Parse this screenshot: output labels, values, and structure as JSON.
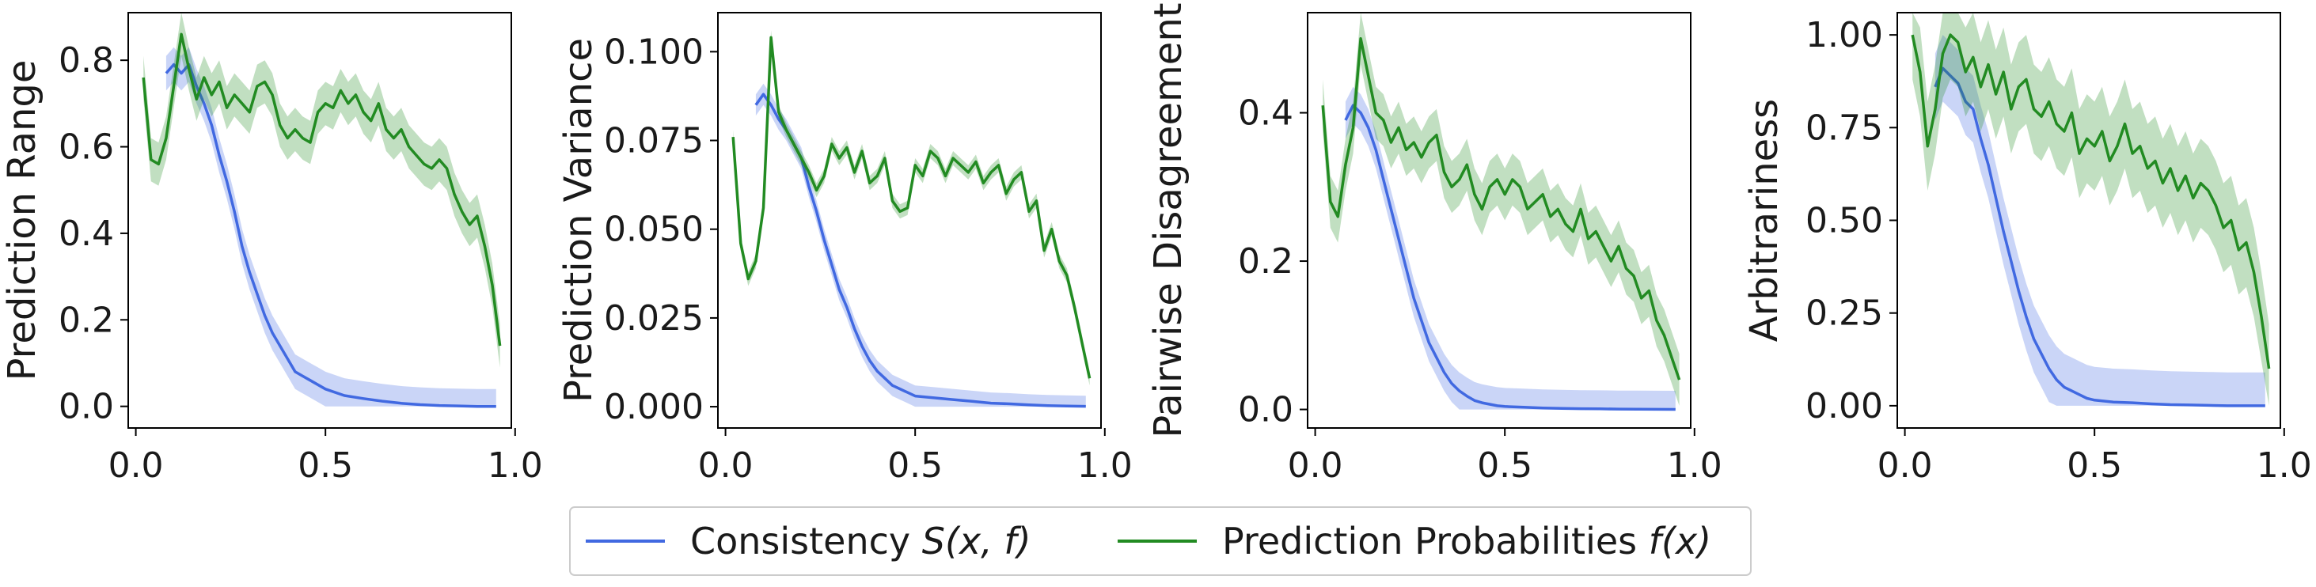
{
  "legend": {
    "placement": "bottom-center",
    "items": [
      {
        "label_pre": "Consistency ",
        "label_math": "S(x, f)",
        "color": "#4169e1"
      },
      {
        "label_pre": "Prediction Probabilities ",
        "label_math": "f(x)",
        "color": "#228b22"
      }
    ]
  },
  "chart_data": [
    {
      "type": "line",
      "ylabel": "Prediction Range",
      "xlim": [
        -0.02,
        0.99
      ],
      "ylim": [
        -0.05,
        0.91
      ],
      "xticks": [
        "0.0",
        "0.5",
        "1.0"
      ],
      "yticks": [
        "0.0",
        "0.2",
        "0.4",
        "0.6",
        "0.8"
      ],
      "series": [
        {
          "name": "Consistency S(x, f)",
          "color": "#4169e1",
          "x": [
            0.08,
            0.1,
            0.12,
            0.14,
            0.16,
            0.18,
            0.2,
            0.22,
            0.24,
            0.26,
            0.28,
            0.3,
            0.32,
            0.34,
            0.36,
            0.38,
            0.4,
            0.42,
            0.44,
            0.46,
            0.48,
            0.5,
            0.55,
            0.6,
            0.65,
            0.7,
            0.75,
            0.8,
            0.85,
            0.9,
            0.95
          ],
          "y": [
            0.77,
            0.79,
            0.77,
            0.79,
            0.74,
            0.7,
            0.65,
            0.58,
            0.52,
            0.45,
            0.37,
            0.31,
            0.26,
            0.21,
            0.17,
            0.14,
            0.11,
            0.08,
            0.07,
            0.06,
            0.05,
            0.04,
            0.025,
            0.018,
            0.012,
            0.007,
            0.004,
            0.002,
            0.001,
            0.0,
            0.0
          ],
          "band": 0.04
        },
        {
          "name": "Prediction Probabilities f(x)",
          "color": "#228b22",
          "x": [
            0.02,
            0.04,
            0.06,
            0.08,
            0.1,
            0.12,
            0.14,
            0.16,
            0.18,
            0.2,
            0.22,
            0.24,
            0.26,
            0.28,
            0.3,
            0.32,
            0.34,
            0.36,
            0.38,
            0.4,
            0.42,
            0.44,
            0.46,
            0.48,
            0.5,
            0.52,
            0.54,
            0.56,
            0.58,
            0.6,
            0.62,
            0.64,
            0.66,
            0.68,
            0.7,
            0.72,
            0.74,
            0.76,
            0.78,
            0.8,
            0.82,
            0.84,
            0.86,
            0.88,
            0.9,
            0.92,
            0.94,
            0.96
          ],
          "y": [
            0.76,
            0.57,
            0.56,
            0.62,
            0.74,
            0.86,
            0.78,
            0.71,
            0.76,
            0.72,
            0.75,
            0.69,
            0.72,
            0.7,
            0.68,
            0.74,
            0.75,
            0.72,
            0.65,
            0.62,
            0.64,
            0.62,
            0.61,
            0.68,
            0.7,
            0.69,
            0.73,
            0.7,
            0.72,
            0.68,
            0.66,
            0.7,
            0.64,
            0.62,
            0.64,
            0.6,
            0.58,
            0.56,
            0.55,
            0.57,
            0.55,
            0.49,
            0.45,
            0.42,
            0.44,
            0.37,
            0.28,
            0.14
          ],
          "band": 0.05
        }
      ]
    },
    {
      "type": "line",
      "ylabel": "Prediction Variance",
      "xlim": [
        -0.02,
        0.99
      ],
      "ylim": [
        -0.006,
        0.111
      ],
      "xticks": [
        "0.0",
        "0.5",
        "1.0"
      ],
      "yticks": [
        "0.000",
        "0.025",
        "0.050",
        "0.075",
        "0.100"
      ],
      "series": [
        {
          "name": "Consistency S(x, f)",
          "color": "#4169e1",
          "x": [
            0.08,
            0.1,
            0.12,
            0.14,
            0.16,
            0.18,
            0.2,
            0.22,
            0.24,
            0.26,
            0.28,
            0.3,
            0.32,
            0.34,
            0.36,
            0.38,
            0.4,
            0.42,
            0.44,
            0.46,
            0.48,
            0.5,
            0.55,
            0.6,
            0.65,
            0.7,
            0.75,
            0.8,
            0.85,
            0.9,
            0.95
          ],
          "y": [
            0.085,
            0.088,
            0.085,
            0.081,
            0.078,
            0.074,
            0.07,
            0.062,
            0.055,
            0.047,
            0.04,
            0.033,
            0.028,
            0.022,
            0.017,
            0.013,
            0.01,
            0.008,
            0.006,
            0.005,
            0.004,
            0.003,
            0.0025,
            0.002,
            0.0015,
            0.001,
            0.0008,
            0.0005,
            0.0003,
            0.0002,
            0.0001
          ],
          "band": 0.003
        },
        {
          "name": "Prediction Probabilities f(x)",
          "color": "#228b22",
          "x": [
            0.02,
            0.04,
            0.06,
            0.08,
            0.1,
            0.12,
            0.14,
            0.16,
            0.18,
            0.2,
            0.22,
            0.24,
            0.26,
            0.28,
            0.3,
            0.32,
            0.34,
            0.36,
            0.38,
            0.4,
            0.42,
            0.44,
            0.46,
            0.48,
            0.5,
            0.52,
            0.54,
            0.56,
            0.58,
            0.6,
            0.62,
            0.64,
            0.66,
            0.68,
            0.7,
            0.72,
            0.74,
            0.76,
            0.78,
            0.8,
            0.82,
            0.84,
            0.86,
            0.88,
            0.9,
            0.92,
            0.94,
            0.96
          ],
          "y": [
            0.076,
            0.046,
            0.036,
            0.041,
            0.056,
            0.104,
            0.083,
            0.078,
            0.074,
            0.07,
            0.066,
            0.061,
            0.065,
            0.074,
            0.07,
            0.073,
            0.066,
            0.072,
            0.063,
            0.065,
            0.07,
            0.058,
            0.055,
            0.056,
            0.068,
            0.065,
            0.072,
            0.07,
            0.065,
            0.07,
            0.068,
            0.066,
            0.069,
            0.063,
            0.066,
            0.068,
            0.06,
            0.064,
            0.066,
            0.055,
            0.058,
            0.044,
            0.05,
            0.041,
            0.037,
            0.028,
            0.018,
            0.008
          ],
          "band": 0.002
        }
      ]
    },
    {
      "type": "line",
      "ylabel": "Pairwise Disagreement",
      "xlim": [
        -0.02,
        0.99
      ],
      "ylim": [
        -0.025,
        0.535
      ],
      "xticks": [
        "0.0",
        "0.5",
        "1.0"
      ],
      "yticks": [
        "0.0",
        "0.2",
        "0.4"
      ],
      "series": [
        {
          "name": "Consistency S(x, f)",
          "color": "#4169e1",
          "x": [
            0.08,
            0.1,
            0.12,
            0.14,
            0.16,
            0.18,
            0.2,
            0.22,
            0.24,
            0.26,
            0.28,
            0.3,
            0.32,
            0.34,
            0.36,
            0.38,
            0.4,
            0.42,
            0.44,
            0.46,
            0.48,
            0.5,
            0.55,
            0.6,
            0.65,
            0.7,
            0.75,
            0.8,
            0.85,
            0.9,
            0.95
          ],
          "y": [
            0.39,
            0.41,
            0.4,
            0.38,
            0.35,
            0.31,
            0.27,
            0.23,
            0.19,
            0.15,
            0.12,
            0.09,
            0.07,
            0.05,
            0.035,
            0.025,
            0.018,
            0.012,
            0.009,
            0.007,
            0.005,
            0.004,
            0.003,
            0.002,
            0.0015,
            0.001,
            0.0008,
            0.0005,
            0.0003,
            0.0002,
            0.0001
          ],
          "band": 0.025
        },
        {
          "name": "Prediction Probabilities f(x)",
          "color": "#228b22",
          "x": [
            0.02,
            0.04,
            0.06,
            0.08,
            0.1,
            0.12,
            0.14,
            0.16,
            0.18,
            0.2,
            0.22,
            0.24,
            0.26,
            0.28,
            0.3,
            0.32,
            0.34,
            0.36,
            0.38,
            0.4,
            0.42,
            0.44,
            0.46,
            0.48,
            0.5,
            0.52,
            0.54,
            0.56,
            0.58,
            0.6,
            0.62,
            0.64,
            0.66,
            0.68,
            0.7,
            0.72,
            0.74,
            0.76,
            0.78,
            0.8,
            0.82,
            0.84,
            0.86,
            0.88,
            0.9,
            0.92,
            0.94,
            0.96
          ],
          "y": [
            0.41,
            0.28,
            0.26,
            0.33,
            0.38,
            0.5,
            0.45,
            0.4,
            0.39,
            0.36,
            0.38,
            0.35,
            0.36,
            0.34,
            0.36,
            0.37,
            0.32,
            0.3,
            0.31,
            0.33,
            0.29,
            0.27,
            0.3,
            0.31,
            0.29,
            0.31,
            0.3,
            0.27,
            0.28,
            0.29,
            0.26,
            0.27,
            0.25,
            0.24,
            0.27,
            0.23,
            0.24,
            0.22,
            0.2,
            0.22,
            0.19,
            0.18,
            0.15,
            0.16,
            0.12,
            0.1,
            0.07,
            0.04
          ],
          "band": 0.035
        }
      ]
    },
    {
      "type": "line",
      "ylabel": "Arbitrariness",
      "xlim": [
        -0.02,
        0.99
      ],
      "ylim": [
        -0.06,
        1.06
      ],
      "xticks": [
        "0.0",
        "0.5",
        "1.0"
      ],
      "yticks": [
        "0.00",
        "0.25",
        "0.50",
        "0.75",
        "1.00"
      ],
      "series": [
        {
          "name": "Consistency S(x, f)",
          "color": "#4169e1",
          "x": [
            0.08,
            0.1,
            0.12,
            0.14,
            0.16,
            0.18,
            0.2,
            0.22,
            0.24,
            0.26,
            0.28,
            0.3,
            0.32,
            0.34,
            0.36,
            0.38,
            0.4,
            0.42,
            0.44,
            0.46,
            0.48,
            0.5,
            0.55,
            0.6,
            0.65,
            0.7,
            0.75,
            0.8,
            0.85,
            0.9,
            0.95
          ],
          "y": [
            0.86,
            0.91,
            0.89,
            0.87,
            0.82,
            0.8,
            0.72,
            0.65,
            0.56,
            0.47,
            0.39,
            0.31,
            0.24,
            0.18,
            0.14,
            0.1,
            0.07,
            0.05,
            0.04,
            0.03,
            0.02,
            0.015,
            0.01,
            0.008,
            0.005,
            0.003,
            0.002,
            0.001,
            0.0,
            0.0,
            0.0
          ],
          "band": 0.09
        },
        {
          "name": "Prediction Probabilities f(x)",
          "color": "#228b22",
          "x": [
            0.02,
            0.04,
            0.06,
            0.08,
            0.1,
            0.12,
            0.14,
            0.16,
            0.18,
            0.2,
            0.22,
            0.24,
            0.26,
            0.28,
            0.3,
            0.32,
            0.34,
            0.36,
            0.38,
            0.4,
            0.42,
            0.44,
            0.46,
            0.48,
            0.5,
            0.52,
            0.54,
            0.56,
            0.58,
            0.6,
            0.62,
            0.64,
            0.66,
            0.68,
            0.7,
            0.72,
            0.74,
            0.76,
            0.78,
            0.8,
            0.82,
            0.84,
            0.86,
            0.88,
            0.9,
            0.92,
            0.94,
            0.96
          ],
          "y": [
            1.0,
            0.9,
            0.7,
            0.8,
            0.95,
            1.0,
            0.98,
            0.9,
            0.94,
            0.86,
            0.92,
            0.84,
            0.9,
            0.8,
            0.86,
            0.88,
            0.8,
            0.78,
            0.82,
            0.76,
            0.74,
            0.79,
            0.68,
            0.72,
            0.7,
            0.74,
            0.66,
            0.7,
            0.76,
            0.68,
            0.7,
            0.64,
            0.66,
            0.6,
            0.64,
            0.58,
            0.62,
            0.56,
            0.6,
            0.58,
            0.54,
            0.48,
            0.5,
            0.42,
            0.44,
            0.36,
            0.24,
            0.1
          ],
          "band": 0.12
        }
      ]
    }
  ]
}
